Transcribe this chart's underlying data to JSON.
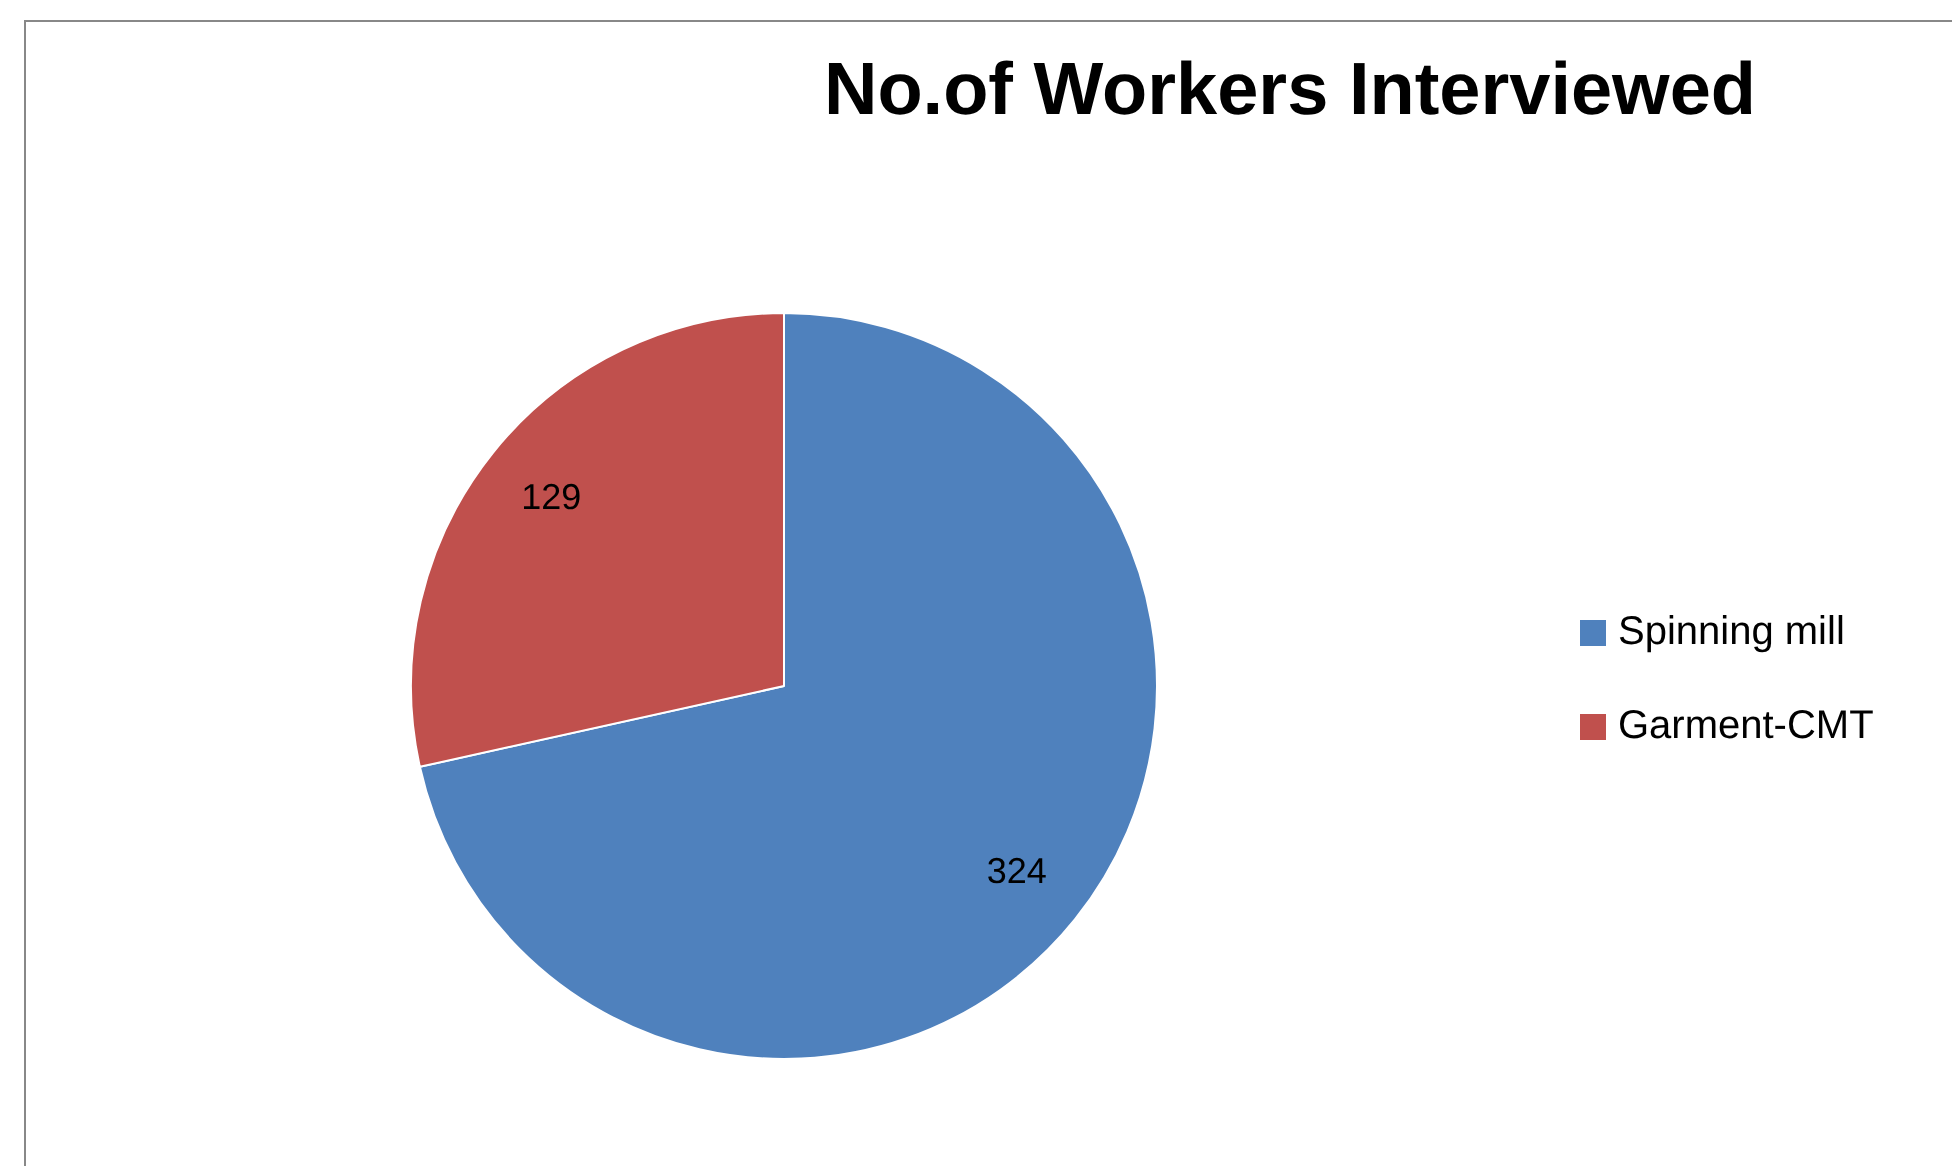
{
  "chart_data": {
    "type": "pie",
    "title": "No.of Workers Interviewed",
    "categories": [
      "Spinning mill",
      "Garment-CMT"
    ],
    "values": [
      324,
      129
    ],
    "colors": [
      "#4f81bd",
      "#c0504d"
    ],
    "data_labels": true,
    "legend": "right"
  }
}
